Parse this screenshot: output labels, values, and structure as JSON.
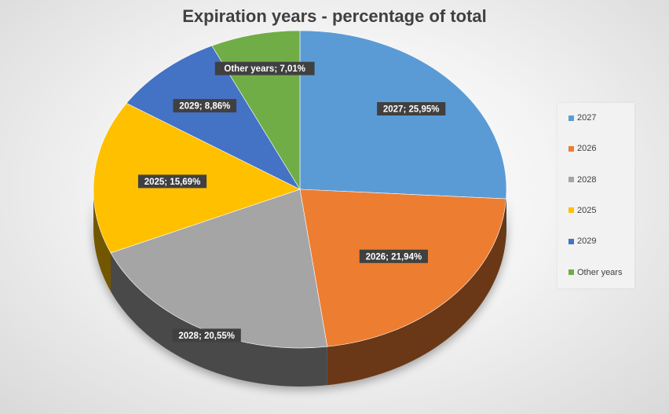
{
  "chart_data": {
    "type": "pie",
    "title": "Expiration years - percentage of total",
    "categories": [
      "2027",
      "2026",
      "2028",
      "2025",
      "2029",
      "Other years"
    ],
    "values": [
      25.95,
      21.94,
      20.55,
      15.69,
      8.86,
      7.01
    ],
    "labels": [
      "2027; 25,95%",
      "2026; 21,94%",
      "2028; 20,55%",
      "2025; 15,69%",
      "2029; 8,86%",
      "Other years; 7,01%"
    ],
    "colors": [
      "#5B9BD5",
      "#ED7D31",
      "#A5A5A5",
      "#FFC000",
      "#4472C4",
      "#70AD47"
    ],
    "legend": {
      "position": "right",
      "entries": [
        "2027",
        "2026",
        "2028",
        "2025",
        "2029",
        "Other years"
      ]
    }
  }
}
